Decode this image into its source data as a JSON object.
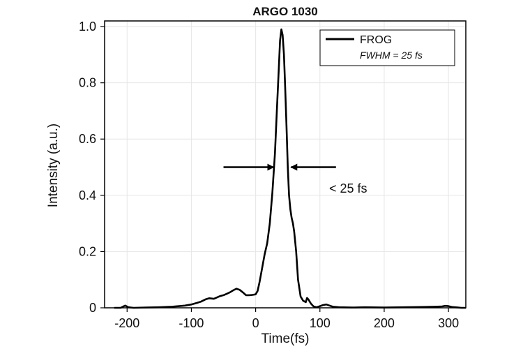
{
  "chart_data": {
    "type": "line",
    "title": "ARGO 1030",
    "xlabel": "Time(fs)",
    "ylabel": "Intensity (a.u.)",
    "xlim": [
      -235,
      327
    ],
    "ylim": [
      0,
      1.02
    ],
    "xticks": [
      -200,
      -100,
      0,
      100,
      200,
      300
    ],
    "yticks": [
      0,
      0.2,
      0.4,
      0.6,
      0.8,
      1.0
    ],
    "ytick_labels": [
      "0",
      "0.2",
      "0.4",
      "0.6",
      "0.8",
      "1.0"
    ],
    "grid": true,
    "legend_position": "top-right",
    "series": [
      {
        "name": "FROG",
        "color": "#000000",
        "x": [
          -220,
          -210,
          -203,
          -198,
          -190,
          -170,
          -150,
          -130,
          -110,
          -100,
          -92,
          -85,
          -78,
          -72,
          -65,
          -60,
          -55,
          -50,
          -45,
          -40,
          -35,
          -30,
          -25,
          -20,
          -15,
          -10,
          -5,
          0,
          3,
          6,
          10,
          14,
          18,
          22,
          26,
          30,
          33,
          36,
          38,
          40,
          42,
          44,
          46,
          48,
          50,
          52,
          54,
          56,
          58,
          60,
          63,
          66,
          70,
          74,
          78,
          80,
          82,
          86,
          90,
          95,
          100,
          105,
          110,
          115,
          120,
          130,
          150,
          170,
          200,
          230,
          260,
          280,
          290,
          295,
          300,
          305,
          310,
          315,
          320,
          327
        ],
        "y": [
          0.0,
          0.0,
          0.008,
          0.002,
          0.0,
          0.001,
          0.002,
          0.004,
          0.008,
          0.012,
          0.017,
          0.022,
          0.03,
          0.034,
          0.032,
          0.037,
          0.042,
          0.045,
          0.05,
          0.055,
          0.062,
          0.068,
          0.064,
          0.055,
          0.045,
          0.045,
          0.046,
          0.048,
          0.06,
          0.09,
          0.14,
          0.19,
          0.23,
          0.3,
          0.41,
          0.55,
          0.7,
          0.85,
          0.95,
          0.99,
          0.97,
          0.9,
          0.78,
          0.65,
          0.5,
          0.4,
          0.35,
          0.32,
          0.3,
          0.27,
          0.2,
          0.1,
          0.04,
          0.025,
          0.02,
          0.035,
          0.03,
          0.015,
          0.005,
          0.002,
          0.006,
          0.01,
          0.012,
          0.008,
          0.004,
          0.002,
          0.001,
          0.002,
          0.001,
          0.002,
          0.003,
          0.004,
          0.005,
          0.007,
          0.006,
          0.003,
          0.002,
          0.001,
          0.0,
          0.0
        ]
      }
    ],
    "legend": {
      "label": "FROG",
      "sublabel": "FWHM = 25 fs"
    },
    "annotation": {
      "text": "< 25 fs",
      "level": 0.5,
      "left_arrow_from": -50,
      "left_arrow_to": 28,
      "right_arrow_from": 125,
      "right_arrow_to": 55
    }
  }
}
